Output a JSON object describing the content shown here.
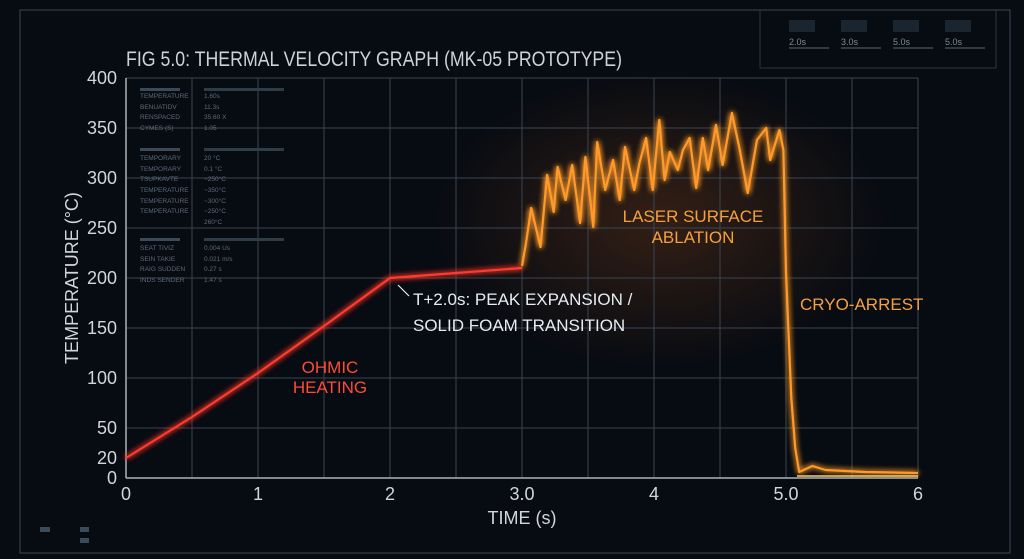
{
  "chart_data": {
    "type": "line",
    "title": "FIG 5.0: THERMAL VELOCITY GRAPH (MK-05 PROTOTYPE)",
    "xlabel": "TIME (s)",
    "ylabel": "TEMPERATURE (°C)",
    "xlim": [
      0,
      6
    ],
    "ylim": [
      0,
      400
    ],
    "grid": true,
    "x_ticks": [
      {
        "value": 0,
        "label": "0"
      },
      {
        "value": 1,
        "label": "1"
      },
      {
        "value": 2,
        "label": "2"
      },
      {
        "value": 3,
        "label": "3.0"
      },
      {
        "value": 4,
        "label": "4"
      },
      {
        "value": 5,
        "label": "5.0"
      },
      {
        "value": 6,
        "label": "6"
      }
    ],
    "y_ticks": [
      {
        "value": 0,
        "label": "0"
      },
      {
        "value": 20,
        "label": "20",
        "highlight": true
      },
      {
        "value": 50,
        "label": "50"
      },
      {
        "value": 100,
        "label": "100"
      },
      {
        "value": 150,
        "label": "150"
      },
      {
        "value": 200,
        "label": "200"
      },
      {
        "value": 250,
        "label": "250"
      },
      {
        "value": 300,
        "label": "300"
      },
      {
        "value": 350,
        "label": "350"
      },
      {
        "value": 400,
        "label": "400"
      }
    ],
    "series": [
      {
        "color": "#ff3a2e",
        "points": [
          [
            0,
            20
          ],
          [
            0.5,
            61
          ],
          [
            1,
            105
          ],
          [
            1.5,
            152
          ],
          [
            2,
            200
          ],
          [
            3,
            210
          ]
        ]
      },
      {
        "color": "#ff9a2a",
        "points": [
          [
            3.0,
            212
          ],
          [
            3.03,
            235
          ],
          [
            3.07,
            270
          ],
          [
            3.14,
            231
          ],
          [
            3.19,
            303
          ],
          [
            3.24,
            266
          ],
          [
            3.27,
            311
          ],
          [
            3.33,
            278
          ],
          [
            3.38,
            313
          ],
          [
            3.44,
            255
          ],
          [
            3.48,
            321
          ],
          [
            3.54,
            251
          ],
          [
            3.57,
            336
          ],
          [
            3.63,
            288
          ],
          [
            3.69,
            318
          ],
          [
            3.74,
            278
          ],
          [
            3.78,
            331
          ],
          [
            3.85,
            288
          ],
          [
            3.89,
            315
          ],
          [
            3.94,
            340
          ],
          [
            3.99,
            288
          ],
          [
            4.04,
            358
          ],
          [
            4.08,
            298
          ],
          [
            4.12,
            326
          ],
          [
            4.18,
            308
          ],
          [
            4.22,
            328
          ],
          [
            4.27,
            340
          ],
          [
            4.32,
            290
          ],
          [
            4.37,
            340
          ],
          [
            4.41,
            308
          ],
          [
            4.47,
            353
          ],
          [
            4.52,
            313
          ],
          [
            4.59,
            365
          ],
          [
            4.65,
            328
          ],
          [
            4.71,
            285
          ],
          [
            4.78,
            338
          ],
          [
            4.85,
            350
          ],
          [
            4.88,
            318
          ],
          [
            4.95,
            348
          ],
          [
            4.98,
            328
          ],
          [
            5.0,
            205
          ],
          [
            5.04,
            80
          ],
          [
            5.07,
            30
          ],
          [
            5.1,
            6
          ],
          [
            5.2,
            12
          ],
          [
            5.3,
            8
          ],
          [
            5.6,
            6
          ],
          [
            6,
            5
          ]
        ]
      }
    ],
    "annotations": {
      "ohmic": [
        "OHMIC",
        "HEATING"
      ],
      "laser": [
        "LASER SURFACE",
        "ABLATION"
      ],
      "peak": [
        "T+2.0s: PEAK EXPANSION /",
        "SOLID FOAM TRANSITION"
      ],
      "cryo": "CRYO-ARREST"
    }
  },
  "overlay_table": [
    [
      "TEMPERATURE",
      "1.60s"
    ],
    [
      "BENUATIDV",
      "11.3s"
    ],
    [
      "RENSPACED",
      "35.60 X"
    ],
    [
      "CYMES (S)",
      "1.05"
    ],
    [
      "TEMPORARY",
      "20 °C"
    ],
    [
      "TEMPORARY",
      "0.1 °C"
    ],
    [
      "TSUPKAVTE",
      "~250°C"
    ],
    [
      "TEMPERATURE",
      "~350°C"
    ],
    [
      "TEMPERATURE",
      "~300°C"
    ],
    [
      "TEMPERATURE",
      "~250°C"
    ],
    [
      "",
      "260°C"
    ],
    [
      "SEAT TIVIZ",
      "0.004 Us"
    ],
    [
      "SEIN TAKIE",
      "0.021 m/s"
    ],
    [
      "RAIG SUDDEN",
      "0.27 s"
    ],
    [
      "INDS SENDER",
      "1.47 s"
    ]
  ],
  "status_panels": [
    "2.0s",
    "3.0s",
    "5.0s",
    "5.0s"
  ]
}
